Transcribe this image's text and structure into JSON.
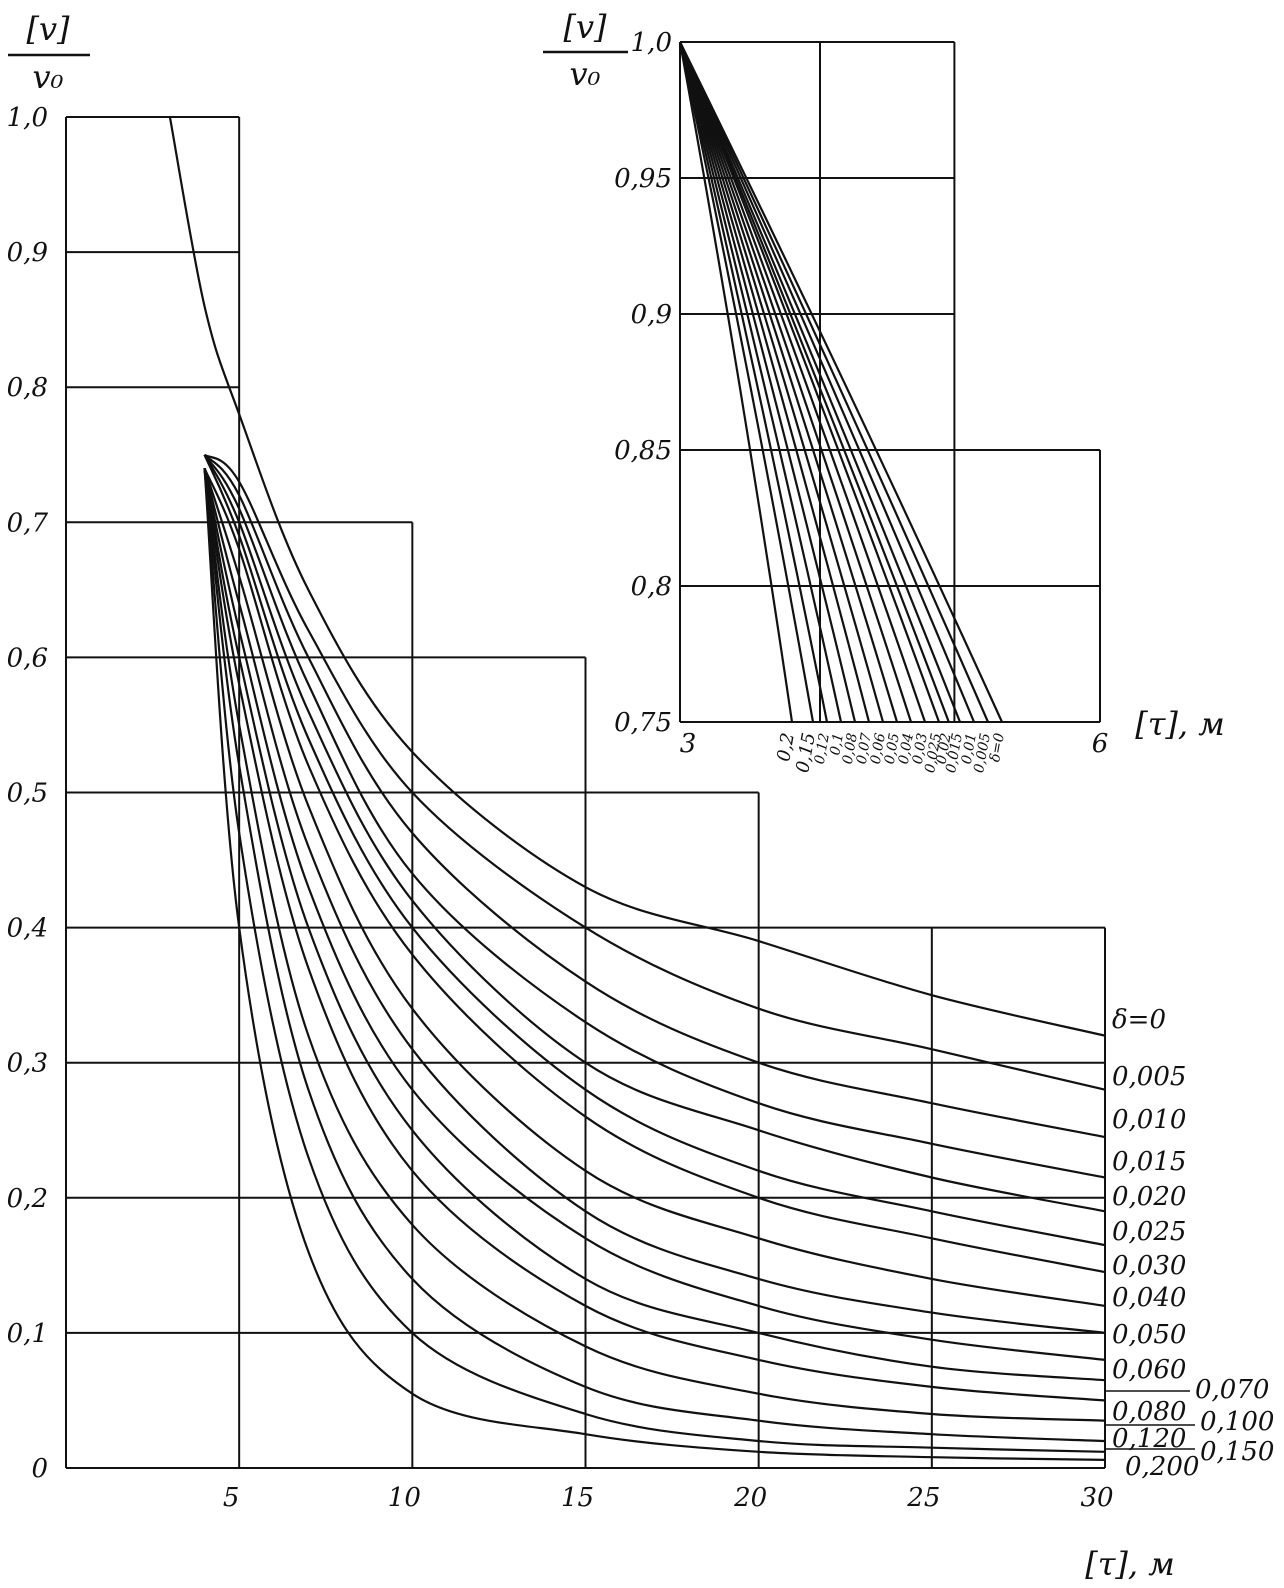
{
  "chart_data": [
    {
      "type": "line",
      "title": "",
      "ylabel_numerator": "[v]",
      "ylabel_denominator": "v₀",
      "xlabel": "[τ], м",
      "xlim": [
        0,
        30
      ],
      "ylim": [
        0,
        1.0
      ],
      "x_ticks": [
        "5",
        "10",
        "15",
        "20",
        "25",
        "30"
      ],
      "y_ticks": [
        "0",
        "0,1",
        "0,2",
        "0,3",
        "0,4",
        "0,5",
        "0,6",
        "0,7",
        "0,8",
        "0,9",
        "1,0"
      ],
      "grid": true,
      "series": [
        {
          "name": "δ=0",
          "x": [
            3,
            4,
            5,
            7,
            10,
            15,
            20,
            25,
            30
          ],
          "y": [
            1.0,
            0.86,
            0.78,
            0.65,
            0.53,
            0.43,
            0.39,
            0.35,
            0.32
          ]
        },
        {
          "name": "0,005",
          "x": [
            4,
            5,
            7,
            10,
            15,
            20,
            25,
            30
          ],
          "y": [
            0.75,
            0.73,
            0.62,
            0.5,
            0.4,
            0.34,
            0.31,
            0.28
          ]
        },
        {
          "name": "0,010",
          "x": [
            4,
            5,
            7,
            10,
            15,
            20,
            25,
            30
          ],
          "y": [
            0.75,
            0.72,
            0.6,
            0.47,
            0.36,
            0.3,
            0.27,
            0.245
          ]
        },
        {
          "name": "0,015",
          "x": [
            4,
            5,
            7,
            10,
            15,
            20,
            25,
            30
          ],
          "y": [
            0.75,
            0.71,
            0.58,
            0.44,
            0.33,
            0.27,
            0.24,
            0.215
          ]
        },
        {
          "name": "0,020",
          "x": [
            4,
            5,
            7,
            10,
            15,
            20,
            25,
            30
          ],
          "y": [
            0.75,
            0.7,
            0.56,
            0.42,
            0.3,
            0.25,
            0.215,
            0.19
          ]
        },
        {
          "name": "0,025",
          "x": [
            4,
            5,
            7,
            10,
            15,
            20,
            25,
            30
          ],
          "y": [
            0.75,
            0.69,
            0.54,
            0.4,
            0.28,
            0.22,
            0.19,
            0.165
          ]
        },
        {
          "name": "0,030",
          "x": [
            4,
            5,
            7,
            10,
            15,
            20,
            25,
            30
          ],
          "y": [
            0.74,
            0.68,
            0.52,
            0.38,
            0.26,
            0.2,
            0.17,
            0.145
          ]
        },
        {
          "name": "0,040",
          "x": [
            4,
            5,
            7,
            10,
            15,
            20,
            25,
            30
          ],
          "y": [
            0.74,
            0.66,
            0.49,
            0.34,
            0.22,
            0.17,
            0.14,
            0.12
          ]
        },
        {
          "name": "0,050",
          "x": [
            4,
            5,
            7,
            10,
            15,
            20,
            25,
            30
          ],
          "y": [
            0.74,
            0.64,
            0.46,
            0.31,
            0.19,
            0.14,
            0.115,
            0.1
          ]
        },
        {
          "name": "0,060",
          "x": [
            4,
            5,
            7,
            10,
            15,
            20,
            25,
            30
          ],
          "y": [
            0.74,
            0.62,
            0.43,
            0.28,
            0.17,
            0.12,
            0.095,
            0.08
          ]
        },
        {
          "name": "0,070",
          "x": [
            4,
            5,
            7,
            10,
            15,
            20,
            25,
            30
          ],
          "y": [
            0.74,
            0.6,
            0.4,
            0.25,
            0.14,
            0.1,
            0.075,
            0.065
          ]
        },
        {
          "name": "0,080",
          "x": [
            4,
            5,
            7,
            10,
            15,
            20,
            25,
            30
          ],
          "y": [
            0.74,
            0.58,
            0.37,
            0.22,
            0.12,
            0.08,
            0.06,
            0.05
          ]
        },
        {
          "name": "0,100",
          "x": [
            4,
            5,
            7,
            10,
            15,
            20,
            25,
            30
          ],
          "y": [
            0.74,
            0.55,
            0.32,
            0.18,
            0.09,
            0.055,
            0.04,
            0.035
          ]
        },
        {
          "name": "0,120",
          "x": [
            4,
            5,
            7,
            10,
            15,
            20,
            25,
            30
          ],
          "y": [
            0.74,
            0.52,
            0.28,
            0.14,
            0.06,
            0.035,
            0.025,
            0.02
          ]
        },
        {
          "name": "0,150",
          "x": [
            4,
            5,
            7,
            10,
            15,
            20,
            25,
            30
          ],
          "y": [
            0.74,
            0.47,
            0.23,
            0.1,
            0.04,
            0.02,
            0.015,
            0.012
          ]
        },
        {
          "name": "0,200",
          "x": [
            4,
            5,
            7,
            10,
            15,
            20,
            25,
            30
          ],
          "y": [
            0.74,
            0.4,
            0.16,
            0.055,
            0.025,
            0.012,
            0.008,
            0.006
          ]
        }
      ]
    },
    {
      "type": "line",
      "title": "",
      "ylabel_numerator": "[v]",
      "ylabel_denominator": "v₀",
      "xlabel": "[τ], м",
      "xlim": [
        3,
        6
      ],
      "ylim": [
        0.75,
        1.0
      ],
      "x_ticks": [
        "3",
        "6"
      ],
      "y_ticks": [
        "0,75",
        "0,8",
        "0,85",
        "0,9",
        "0,95",
        "1,0"
      ],
      "grid": true,
      "series": [
        {
          "name": "0,2",
          "x": [
            3,
            3.8
          ],
          "y": [
            1.0,
            0.75
          ]
        },
        {
          "name": "0,15",
          "x": [
            3,
            3.95
          ],
          "y": [
            1.0,
            0.75
          ]
        },
        {
          "name": "0,12",
          "x": [
            3,
            4.05
          ],
          "y": [
            1.0,
            0.75
          ]
        },
        {
          "name": "0,1",
          "x": [
            3,
            4.15
          ],
          "y": [
            1.0,
            0.75
          ]
        },
        {
          "name": "0,08",
          "x": [
            3,
            4.25
          ],
          "y": [
            1.0,
            0.75
          ]
        },
        {
          "name": "0,07",
          "x": [
            3,
            4.35
          ],
          "y": [
            1.0,
            0.75
          ]
        },
        {
          "name": "0,06",
          "x": [
            3,
            4.45
          ],
          "y": [
            1.0,
            0.75
          ]
        },
        {
          "name": "0,05",
          "x": [
            3,
            4.55
          ],
          "y": [
            1.0,
            0.75
          ]
        },
        {
          "name": "0,04",
          "x": [
            3,
            4.65
          ],
          "y": [
            1.0,
            0.75
          ]
        },
        {
          "name": "0,03",
          "x": [
            3,
            4.75
          ],
          "y": [
            1.0,
            0.75
          ]
        },
        {
          "name": "0,025",
          "x": [
            3,
            4.85
          ],
          "y": [
            1.0,
            0.75
          ]
        },
        {
          "name": "0,02",
          "x": [
            3,
            4.92
          ],
          "y": [
            1.0,
            0.75
          ]
        },
        {
          "name": "0,015",
          "x": [
            3,
            5.0
          ],
          "y": [
            1.0,
            0.75
          ]
        },
        {
          "name": "0,01",
          "x": [
            3,
            5.1
          ],
          "y": [
            1.0,
            0.75
          ]
        },
        {
          "name": "0,005",
          "x": [
            3,
            5.2
          ],
          "y": [
            1.0,
            0.75
          ]
        },
        {
          "name": "δ=0",
          "x": [
            3,
            5.3
          ],
          "y": [
            1.0,
            0.75
          ]
        }
      ],
      "bottom_labels": [
        "0,2",
        "0,15",
        "0,12",
        "0,1",
        "0,08",
        "0,07",
        "0,06",
        "0,05",
        "0,04",
        "0,03",
        "0,025",
        "0,02",
        "0,015",
        "0,01",
        "0,005",
        "δ=0"
      ]
    }
  ]
}
